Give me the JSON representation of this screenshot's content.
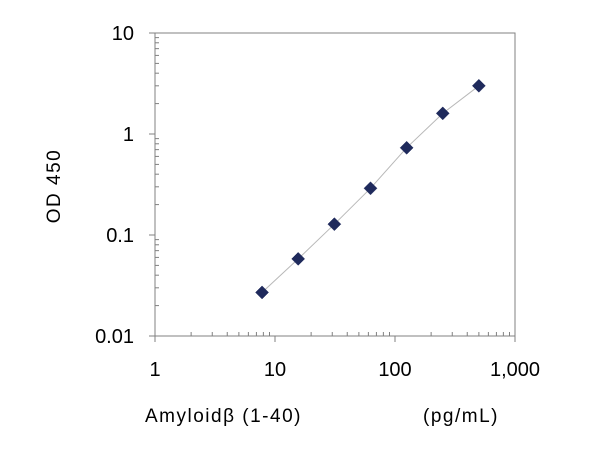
{
  "chart_data": {
    "type": "scatter",
    "x_scale": "log",
    "y_scale": "log",
    "xlim": [
      1,
      1000
    ],
    "ylim": [
      0.01,
      10
    ],
    "x_ticks": [
      1,
      10,
      100,
      1000
    ],
    "y_ticks": [
      0.01,
      0.1,
      1,
      10
    ],
    "x_tick_labels": [
      "1",
      "10",
      "100",
      "1,000"
    ],
    "y_tick_labels": [
      "0.01",
      "0.1",
      "1",
      "10"
    ],
    "xlabel": "Amyloidβ (1-40)",
    "xlabel_unit": "(pg/mL)",
    "ylabel": "OD 450",
    "grid": false,
    "legend": "none",
    "series": [
      {
        "marker": "diamond",
        "color": "#1f2a5c",
        "line_color": "#b8b8b8",
        "x": [
          7.8,
          15.6,
          31.25,
          62.5,
          125,
          250,
          500
        ],
        "y": [
          0.027,
          0.058,
          0.128,
          0.29,
          0.73,
          1.6,
          3.0
        ]
      }
    ]
  }
}
